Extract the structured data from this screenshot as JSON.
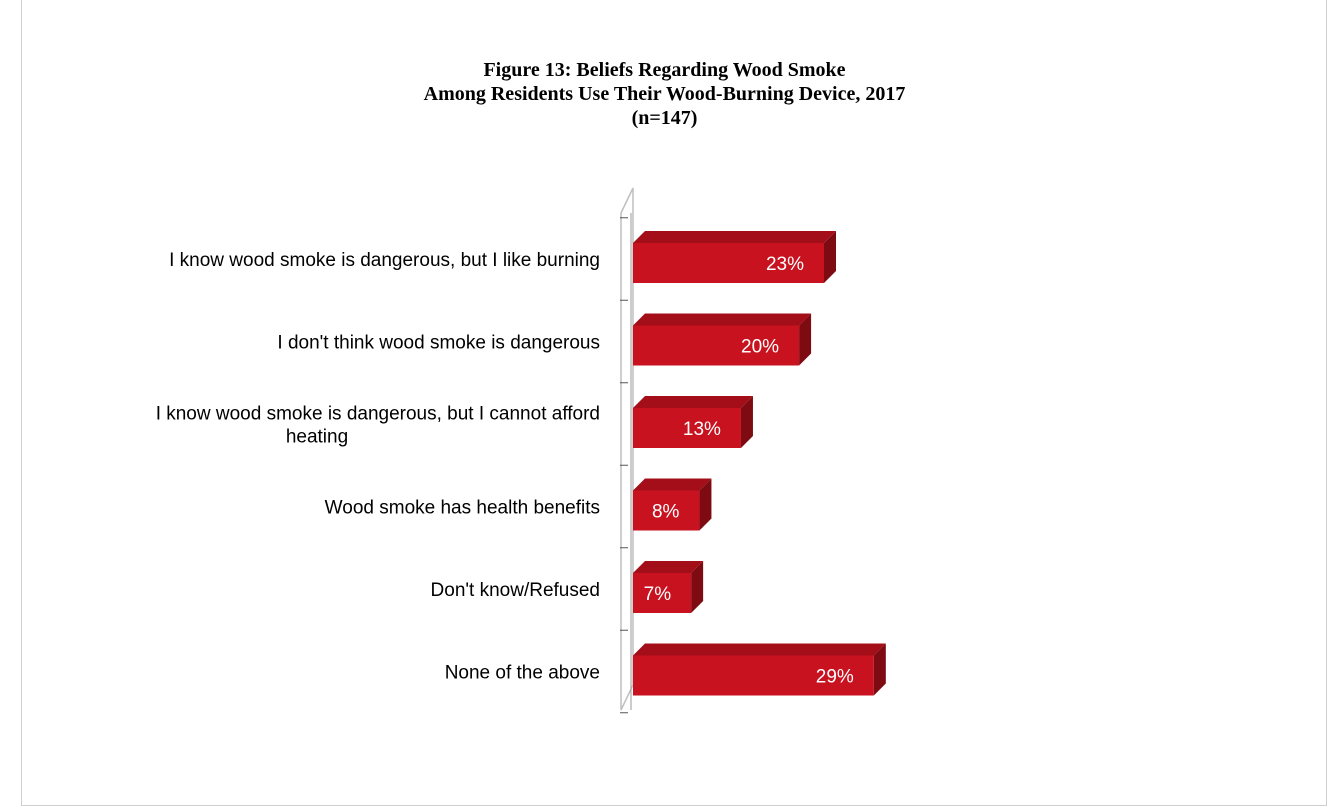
{
  "chart_data": {
    "type": "bar",
    "orientation": "horizontal",
    "style": "3d",
    "title": "Figure 13: Beliefs Regarding Wood Smoke",
    "subtitle": "Among Residents Use Their Wood-Burning Device, 2017",
    "sample_note": "(n=147)",
    "categories": [
      [
        "I know wood smoke is dangerous, but I like burning"
      ],
      [
        "I don't think wood smoke is dangerous"
      ],
      [
        "I know wood smoke is dangerous, but I cannot afford",
        "heating"
      ],
      [
        "Wood smoke has health benefits"
      ],
      [
        "Don't know/Refused"
      ],
      [
        "None of the above"
      ]
    ],
    "values": [
      23,
      20,
      13,
      8,
      7,
      29
    ],
    "value_labels": [
      "23%",
      "20%",
      "13%",
      "8%",
      "7%",
      "29%"
    ],
    "unit": "%",
    "xlim": [
      0,
      30
    ],
    "grid": false,
    "legend": "none",
    "colors": {
      "bar_front": "#c8121f",
      "bar_top": "#a30e19",
      "bar_side": "#7e0a12",
      "axis": "#bfbfbf"
    }
  }
}
